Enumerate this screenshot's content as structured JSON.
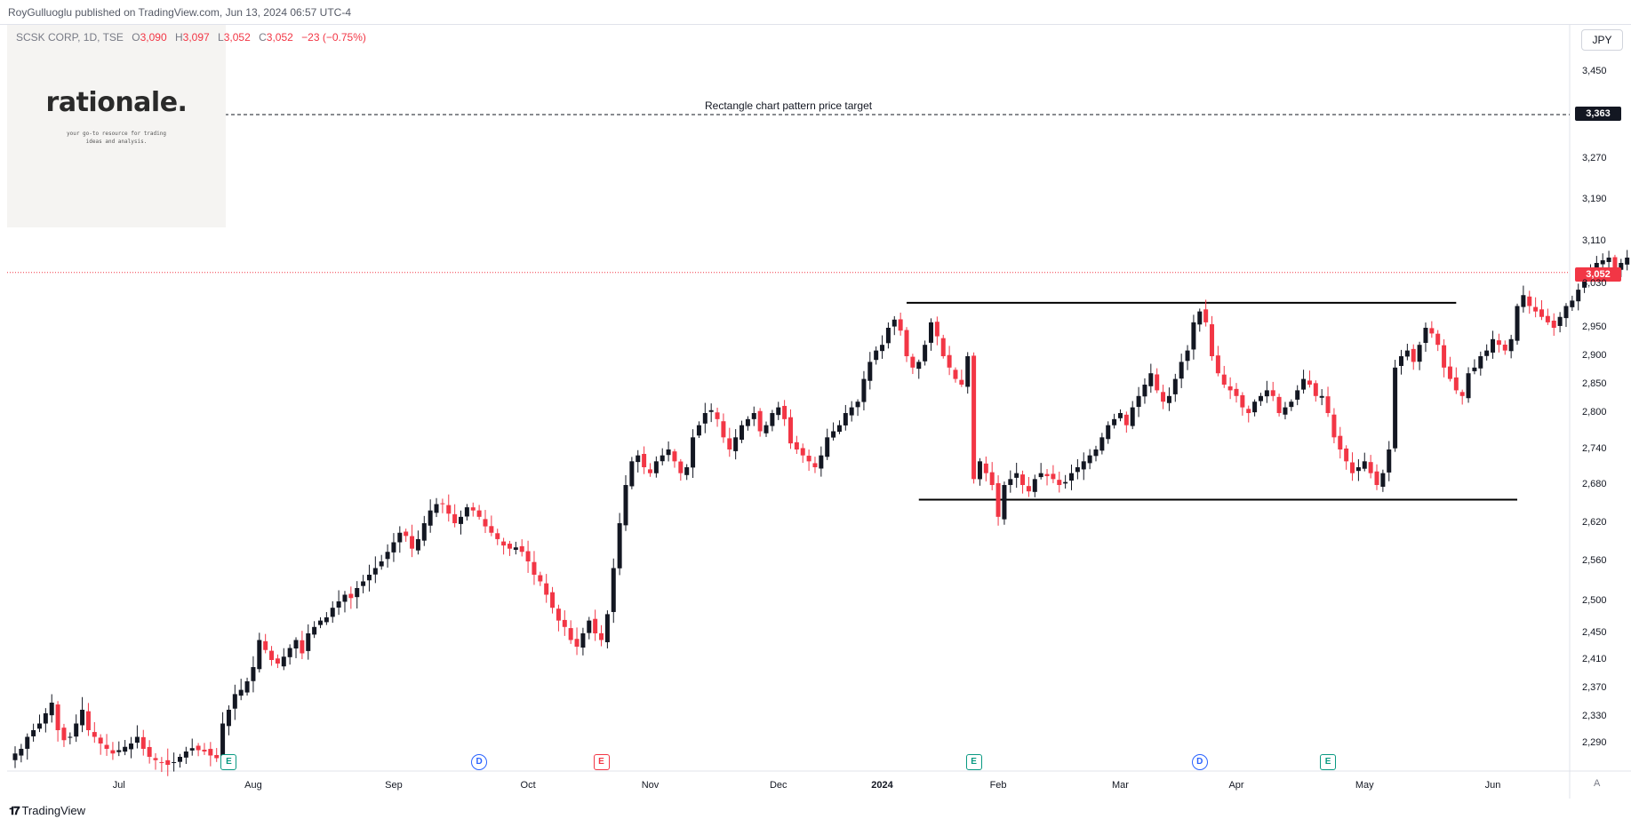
{
  "header": {
    "published": "RoyGulluoglu published on TradingView.com,  Jun 13, 2024 06:57 UTC-4"
  },
  "symbol": {
    "name": "SCSK CORP, 1D, TSE",
    "open_label": "O",
    "open": "3,090",
    "high_label": "H",
    "high": "3,097",
    "low_label": "L",
    "low": "3,052",
    "close_label": "C",
    "close": "3,052",
    "change": "−23 (−0.75%)"
  },
  "logo": {
    "word": "rationale.",
    "tagline": "your go-to resource for trading ideas and analysis."
  },
  "currency": "JPY",
  "footer": {
    "brand": "TradingView",
    "auto_label": "A"
  },
  "colors": {
    "up": "#131722",
    "down": "#f23645",
    "accent": "#2962ff",
    "earnings": "#089981"
  },
  "chart_data": {
    "type": "candlestick",
    "y_axis": {
      "ticks": [
        2290,
        2330,
        2370,
        2410,
        2450,
        2500,
        2560,
        2620,
        2680,
        2740,
        2800,
        2850,
        2900,
        2950,
        3030,
        3110,
        3190,
        3270,
        3450
      ],
      "tick_labels": [
        "2,290",
        "2,330",
        "2,370",
        "2,410",
        "2,450",
        "2,500",
        "2,560",
        "2,620",
        "2,680",
        "2,740",
        "2,800",
        "2,850",
        "2,900",
        "2,950",
        "3,030",
        "3,110",
        "3,190",
        "3,270",
        "3,450"
      ]
    },
    "x_axis": {
      "labels": [
        "Jul",
        "Aug",
        "Sep",
        "Oct",
        "Nov",
        "Dec",
        "2024",
        "Feb",
        "Mar",
        "Apr",
        "May",
        "Jun"
      ],
      "label_index": [
        17,
        39,
        62,
        84,
        104,
        125,
        142,
        161,
        181,
        200,
        221,
        242
      ]
    },
    "annotations": {
      "target": {
        "price": 3363,
        "label": "Rectangle chart pattern price target",
        "tag": "3,363"
      },
      "last_price": {
        "price": 3052,
        "tag": "3,052"
      },
      "resistance": {
        "price": 2996,
        "from_index": 146,
        "to_index": 236
      },
      "support": {
        "price": 2657,
        "from_index": 148,
        "to_index": 246
      }
    },
    "events": [
      {
        "type": "earnings",
        "sign": "pos",
        "label": "E",
        "index": 35
      },
      {
        "type": "dividend",
        "label": "D",
        "index": 76
      },
      {
        "type": "earnings",
        "sign": "neg",
        "label": "E",
        "index": 96
      },
      {
        "type": "earnings",
        "sign": "pos",
        "label": "E",
        "index": 157
      },
      {
        "type": "dividend",
        "label": "D",
        "index": 194
      },
      {
        "type": "earnings",
        "sign": "pos",
        "label": "E",
        "index": 215
      }
    ],
    "closes": [
      2275,
      2282,
      2300,
      2310,
      2320,
      2335,
      2350,
      2310,
      2295,
      2300,
      2320,
      2340,
      2310,
      2300,
      2290,
      2282,
      2275,
      2280,
      2285,
      2290,
      2300,
      2282,
      2270,
      2265,
      2262,
      2258,
      2262,
      2270,
      2278,
      2283,
      2280,
      2278,
      2272,
      2268,
      2320,
      2340,
      2362,
      2368,
      2380,
      2400,
      2440,
      2425,
      2410,
      2405,
      2415,
      2428,
      2440,
      2420,
      2450,
      2460,
      2470,
      2475,
      2490,
      2500,
      2510,
      2505,
      2520,
      2530,
      2540,
      2550,
      2560,
      2575,
      2590,
      2605,
      2600,
      2580,
      2595,
      2620,
      2640,
      2650,
      2650,
      2635,
      2620,
      2630,
      2645,
      2640,
      2630,
      2615,
      2605,
      2595,
      2585,
      2580,
      2582,
      2575,
      2560,
      2540,
      2530,
      2510,
      2490,
      2470,
      2460,
      2440,
      2430,
      2450,
      2470,
      2450,
      2440,
      2480,
      2550,
      2620,
      2680,
      2720,
      2730,
      2710,
      2700,
      2720,
      2730,
      2740,
      2720,
      2700,
      2710,
      2760,
      2780,
      2800,
      2805,
      2790,
      2760,
      2740,
      2760,
      2780,
      2790,
      2800,
      2770,
      2780,
      2800,
      2810,
      2790,
      2750,
      2740,
      2730,
      2720,
      2710,
      2730,
      2760,
      2770,
      2780,
      2800,
      2810,
      2820,
      2860,
      2890,
      2910,
      2920,
      2950,
      2965,
      2945,
      2900,
      2880,
      2890,
      2920,
      2960,
      2935,
      2900,
      2880,
      2860,
      2850,
      2900,
      2690,
      2720,
      2700,
      2680,
      2630,
      2680,
      2690,
      2700,
      2680,
      2670,
      2690,
      2700,
      2695,
      2690,
      2680,
      2685,
      2700,
      2710,
      2720,
      2730,
      2740,
      2760,
      2780,
      2790,
      2800,
      2780,
      2810,
      2830,
      2850,
      2870,
      2840,
      2820,
      2830,
      2860,
      2890,
      2910,
      2960,
      2980,
      2960,
      2900,
      2870,
      2850,
      2840,
      2830,
      2810,
      2800,
      2820,
      2830,
      2840,
      2830,
      2800,
      2810,
      2820,
      2840,
      2860,
      2850,
      2830,
      2830,
      2800,
      2760,
      2740,
      2720,
      2700,
      2710,
      2720,
      2700,
      2680,
      2700,
      2740,
      2880,
      2900,
      2910,
      2890,
      2920,
      2950,
      2940,
      2920,
      2880,
      2860,
      2840,
      2830,
      2870,
      2880,
      2900,
      2910,
      2930,
      2920,
      2910,
      2930,
      2990,
      3010,
      2990,
      2980,
      2970,
      2960,
      2950,
      2970,
      2990,
      3000,
      3020,
      3050,
      3060,
      3070,
      3075,
      3080,
      3060,
      3070,
      3080,
      3075,
      3052
    ]
  }
}
